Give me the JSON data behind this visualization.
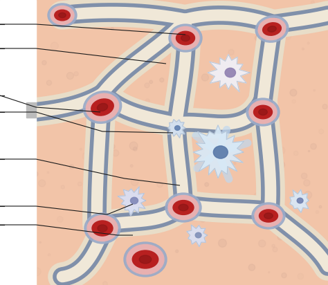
{
  "bg_color": "#f2c4a8",
  "fig_w": 4.74,
  "fig_h": 4.12,
  "dpi": 100,
  "wall_outer": "#e8ddc8",
  "wall_mid": "#8090aa",
  "wall_inner": "#f0e8d8",
  "rbc_dark": "#b82020",
  "rbc_mid": "#cc2828",
  "pink_cap": "#e8b0b0",
  "blue_cap": "#9aaac8",
  "ann_color": "#1a1a1a",
  "ann_lw": 0.8,
  "white_margin": "#ffffff",
  "dot_color": "#c8a090"
}
